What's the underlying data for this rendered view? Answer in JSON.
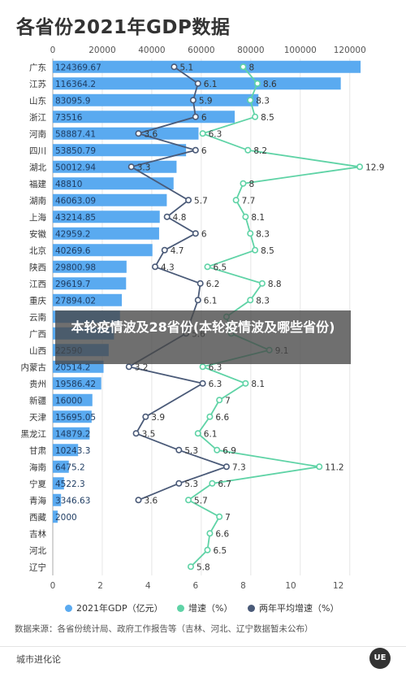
{
  "page": {
    "title": "各省份2021年GDP数据",
    "overlay_text": "本轮疫情波及28省份(本轮疫情波及哪些省份)",
    "source_text": "数据来源：各省份统计局、政府工作报告等（吉林、河北、辽宁数据暂未公布）",
    "footer_text": "城市进化论",
    "logo_text": "UE"
  },
  "colors": {
    "bar": "#5aaaf0",
    "growth": "#5fd3a6",
    "avg_growth": "#4a5a78",
    "grid": "#e6e6e6",
    "text": "#333333"
  },
  "chart_data": {
    "type": "bar",
    "title": "各省份2021年GDP数据",
    "top_axis": {
      "range": [
        0,
        125000
      ],
      "ticks": [
        0,
        20000,
        40000,
        60000,
        80000,
        100000,
        120000
      ]
    },
    "bottom_axis": {
      "range": [
        0,
        13
      ],
      "ticks": [
        0,
        2,
        4,
        6,
        8,
        10,
        12
      ]
    },
    "categories": [
      "广东",
      "江苏",
      "山东",
      "浙江",
      "河南",
      "四川",
      "湖北",
      "福建",
      "湖南",
      "上海",
      "安徽",
      "北京",
      "陕西",
      "江西",
      "重庆",
      "云南",
      "广西",
      "山西",
      "内蒙古",
      "贵州",
      "新疆",
      "天津",
      "黑龙江",
      "甘肃",
      "海南",
      "宁夏",
      "青海",
      "西藏",
      "吉林",
      "河北",
      "辽宁"
    ],
    "series": [
      {
        "name": "2021年GDP（亿元）",
        "type": "bar",
        "axis": "top",
        "values": [
          124369.67,
          116364.2,
          83095.9,
          73516,
          58887.41,
          53850.79,
          50012.94,
          48810,
          46063.09,
          43214.85,
          42959.2,
          40269.6,
          29800.98,
          29619.7,
          27894.02,
          27146.8,
          24740.9,
          22590,
          20514.2,
          19586.42,
          16000,
          15695.05,
          14879.2,
          10243.3,
          6475.2,
          4522.3,
          3346.63,
          2000,
          null,
          null,
          null
        ],
        "labels": [
          "124369.67",
          "116364.2",
          "83095.9",
          "73516",
          "58887.41",
          "53850.79",
          "50012.94",
          "48810",
          "46063.09",
          "43214.85",
          "42959.2",
          "40269.6",
          "29800.98",
          "29619.7",
          "27894.02",
          "",
          "",
          "22590",
          "20514.2",
          "19586.42",
          "16000",
          "15695.05",
          "14879.2",
          "10243.3",
          "6475.2",
          "4522.3",
          "3346.63",
          "2000",
          "",
          "",
          ""
        ]
      },
      {
        "name": "增速（%）",
        "type": "line",
        "axis": "bottom",
        "values": [
          8,
          8.6,
          8.3,
          8.5,
          6.3,
          8.2,
          12.9,
          8,
          7.7,
          8.1,
          8.3,
          8.5,
          6.5,
          8.8,
          8.3,
          7.3,
          7.5,
          9.1,
          6.3,
          8.1,
          7,
          6.6,
          6.1,
          6.9,
          11.2,
          6.7,
          5.7,
          7,
          6.6,
          6.5,
          5.8
        ],
        "labels": [
          "8",
          "8.6",
          "8.3",
          "8.5",
          "6.3",
          "8.2",
          "12.9",
          "8",
          "7.7",
          "8.1",
          "8.3",
          "8.5",
          "6.5",
          "8.8",
          "8.3",
          "",
          "",
          "9.1",
          "6.3",
          "8.1",
          "7",
          "6.6",
          "6.1",
          "6.9",
          "11.2",
          "6.7",
          "5.7",
          "7",
          "6.6",
          "6.5",
          "5.8"
        ]
      },
      {
        "name": "两年平均增速（%）",
        "type": "line",
        "axis": "bottom",
        "values": [
          5.1,
          6.1,
          5.9,
          6,
          3.6,
          6,
          3.3,
          null,
          5.7,
          4.8,
          6,
          4.7,
          4.3,
          6.2,
          6.1,
          null,
          5.6,
          null,
          3.2,
          6.3,
          null,
          3.9,
          3.5,
          5.3,
          7.3,
          5.3,
          3.6,
          null,
          null,
          null,
          null
        ],
        "labels": [
          "5.1",
          "6.1",
          "5.9",
          "6",
          "3.6",
          "6",
          "3.3",
          "",
          "5.7",
          "4.8",
          "6",
          "4.7",
          "4.3",
          "6.2",
          "6.1",
          "",
          "5.6",
          "",
          "3.2",
          "6.3",
          "",
          "3.9",
          "3.5",
          "5.3",
          "7.3",
          "5.3",
          "3.6",
          "",
          "",
          "",
          ""
        ]
      }
    ],
    "legend": [
      "2021年GDP（亿元）",
      "增速（%）",
      "两年平均增速（%）"
    ],
    "legend_position": "bottom"
  }
}
